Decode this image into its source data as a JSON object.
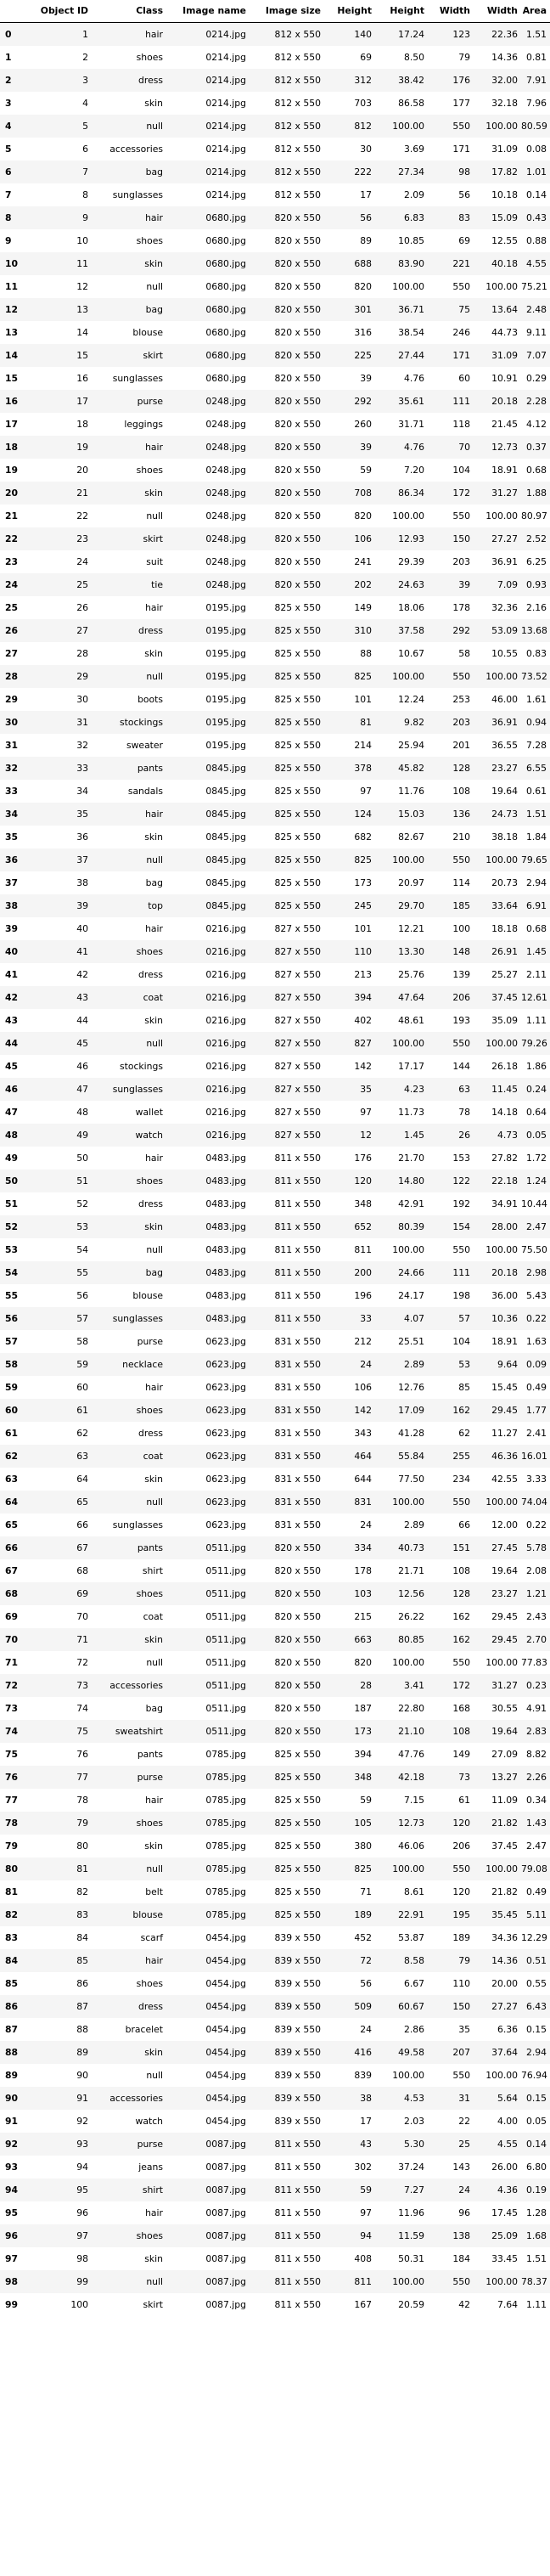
{
  "columns": [
    "",
    "Object ID",
    "Class",
    "Image name",
    "Image size",
    "Height",
    "Height",
    "Width",
    "Width",
    "Area"
  ],
  "rows": [
    [
      "0",
      "1",
      "hair",
      "0214.jpg",
      "812 x 550",
      "140",
      "17.24",
      "123",
      "22.36",
      "1.51"
    ],
    [
      "1",
      "2",
      "shoes",
      "0214.jpg",
      "812 x 550",
      "69",
      "8.50",
      "79",
      "14.36",
      "0.81"
    ],
    [
      "2",
      "3",
      "dress",
      "0214.jpg",
      "812 x 550",
      "312",
      "38.42",
      "176",
      "32.00",
      "7.91"
    ],
    [
      "3",
      "4",
      "skin",
      "0214.jpg",
      "812 x 550",
      "703",
      "86.58",
      "177",
      "32.18",
      "7.96"
    ],
    [
      "4",
      "5",
      "null",
      "0214.jpg",
      "812 x 550",
      "812",
      "100.00",
      "550",
      "100.00",
      "80.59"
    ],
    [
      "5",
      "6",
      "accessories",
      "0214.jpg",
      "812 x 550",
      "30",
      "3.69",
      "171",
      "31.09",
      "0.08"
    ],
    [
      "6",
      "7",
      "bag",
      "0214.jpg",
      "812 x 550",
      "222",
      "27.34",
      "98",
      "17.82",
      "1.01"
    ],
    [
      "7",
      "8",
      "sunglasses",
      "0214.jpg",
      "812 x 550",
      "17",
      "2.09",
      "56",
      "10.18",
      "0.14"
    ],
    [
      "8",
      "9",
      "hair",
      "0680.jpg",
      "820 x 550",
      "56",
      "6.83",
      "83",
      "15.09",
      "0.43"
    ],
    [
      "9",
      "10",
      "shoes",
      "0680.jpg",
      "820 x 550",
      "89",
      "10.85",
      "69",
      "12.55",
      "0.88"
    ],
    [
      "10",
      "11",
      "skin",
      "0680.jpg",
      "820 x 550",
      "688",
      "83.90",
      "221",
      "40.18",
      "4.55"
    ],
    [
      "11",
      "12",
      "null",
      "0680.jpg",
      "820 x 550",
      "820",
      "100.00",
      "550",
      "100.00",
      "75.21"
    ],
    [
      "12",
      "13",
      "bag",
      "0680.jpg",
      "820 x 550",
      "301",
      "36.71",
      "75",
      "13.64",
      "2.48"
    ],
    [
      "13",
      "14",
      "blouse",
      "0680.jpg",
      "820 x 550",
      "316",
      "38.54",
      "246",
      "44.73",
      "9.11"
    ],
    [
      "14",
      "15",
      "skirt",
      "0680.jpg",
      "820 x 550",
      "225",
      "27.44",
      "171",
      "31.09",
      "7.07"
    ],
    [
      "15",
      "16",
      "sunglasses",
      "0680.jpg",
      "820 x 550",
      "39",
      "4.76",
      "60",
      "10.91",
      "0.29"
    ],
    [
      "16",
      "17",
      "purse",
      "0248.jpg",
      "820 x 550",
      "292",
      "35.61",
      "111",
      "20.18",
      "2.28"
    ],
    [
      "17",
      "18",
      "leggings",
      "0248.jpg",
      "820 x 550",
      "260",
      "31.71",
      "118",
      "21.45",
      "4.12"
    ],
    [
      "18",
      "19",
      "hair",
      "0248.jpg",
      "820 x 550",
      "39",
      "4.76",
      "70",
      "12.73",
      "0.37"
    ],
    [
      "19",
      "20",
      "shoes",
      "0248.jpg",
      "820 x 550",
      "59",
      "7.20",
      "104",
      "18.91",
      "0.68"
    ],
    [
      "20",
      "21",
      "skin",
      "0248.jpg",
      "820 x 550",
      "708",
      "86.34",
      "172",
      "31.27",
      "1.88"
    ],
    [
      "21",
      "22",
      "null",
      "0248.jpg",
      "820 x 550",
      "820",
      "100.00",
      "550",
      "100.00",
      "80.97"
    ],
    [
      "22",
      "23",
      "skirt",
      "0248.jpg",
      "820 x 550",
      "106",
      "12.93",
      "150",
      "27.27",
      "2.52"
    ],
    [
      "23",
      "24",
      "suit",
      "0248.jpg",
      "820 x 550",
      "241",
      "29.39",
      "203",
      "36.91",
      "6.25"
    ],
    [
      "24",
      "25",
      "tie",
      "0248.jpg",
      "820 x 550",
      "202",
      "24.63",
      "39",
      "7.09",
      "0.93"
    ],
    [
      "25",
      "26",
      "hair",
      "0195.jpg",
      "825 x 550",
      "149",
      "18.06",
      "178",
      "32.36",
      "2.16"
    ],
    [
      "26",
      "27",
      "dress",
      "0195.jpg",
      "825 x 550",
      "310",
      "37.58",
      "292",
      "53.09",
      "13.68"
    ],
    [
      "27",
      "28",
      "skin",
      "0195.jpg",
      "825 x 550",
      "88",
      "10.67",
      "58",
      "10.55",
      "0.83"
    ],
    [
      "28",
      "29",
      "null",
      "0195.jpg",
      "825 x 550",
      "825",
      "100.00",
      "550",
      "100.00",
      "73.52"
    ],
    [
      "29",
      "30",
      "boots",
      "0195.jpg",
      "825 x 550",
      "101",
      "12.24",
      "253",
      "46.00",
      "1.61"
    ],
    [
      "30",
      "31",
      "stockings",
      "0195.jpg",
      "825 x 550",
      "81",
      "9.82",
      "203",
      "36.91",
      "0.94"
    ],
    [
      "31",
      "32",
      "sweater",
      "0195.jpg",
      "825 x 550",
      "214",
      "25.94",
      "201",
      "36.55",
      "7.28"
    ],
    [
      "32",
      "33",
      "pants",
      "0845.jpg",
      "825 x 550",
      "378",
      "45.82",
      "128",
      "23.27",
      "6.55"
    ],
    [
      "33",
      "34",
      "sandals",
      "0845.jpg",
      "825 x 550",
      "97",
      "11.76",
      "108",
      "19.64",
      "0.61"
    ],
    [
      "34",
      "35",
      "hair",
      "0845.jpg",
      "825 x 550",
      "124",
      "15.03",
      "136",
      "24.73",
      "1.51"
    ],
    [
      "35",
      "36",
      "skin",
      "0845.jpg",
      "825 x 550",
      "682",
      "82.67",
      "210",
      "38.18",
      "1.84"
    ],
    [
      "36",
      "37",
      "null",
      "0845.jpg",
      "825 x 550",
      "825",
      "100.00",
      "550",
      "100.00",
      "79.65"
    ],
    [
      "37",
      "38",
      "bag",
      "0845.jpg",
      "825 x 550",
      "173",
      "20.97",
      "114",
      "20.73",
      "2.94"
    ],
    [
      "38",
      "39",
      "top",
      "0845.jpg",
      "825 x 550",
      "245",
      "29.70",
      "185",
      "33.64",
      "6.91"
    ],
    [
      "39",
      "40",
      "hair",
      "0216.jpg",
      "827 x 550",
      "101",
      "12.21",
      "100",
      "18.18",
      "0.68"
    ],
    [
      "40",
      "41",
      "shoes",
      "0216.jpg",
      "827 x 550",
      "110",
      "13.30",
      "148",
      "26.91",
      "1.45"
    ],
    [
      "41",
      "42",
      "dress",
      "0216.jpg",
      "827 x 550",
      "213",
      "25.76",
      "139",
      "25.27",
      "2.11"
    ],
    [
      "42",
      "43",
      "coat",
      "0216.jpg",
      "827 x 550",
      "394",
      "47.64",
      "206",
      "37.45",
      "12.61"
    ],
    [
      "43",
      "44",
      "skin",
      "0216.jpg",
      "827 x 550",
      "402",
      "48.61",
      "193",
      "35.09",
      "1.11"
    ],
    [
      "44",
      "45",
      "null",
      "0216.jpg",
      "827 x 550",
      "827",
      "100.00",
      "550",
      "100.00",
      "79.26"
    ],
    [
      "45",
      "46",
      "stockings",
      "0216.jpg",
      "827 x 550",
      "142",
      "17.17",
      "144",
      "26.18",
      "1.86"
    ],
    [
      "46",
      "47",
      "sunglasses",
      "0216.jpg",
      "827 x 550",
      "35",
      "4.23",
      "63",
      "11.45",
      "0.24"
    ],
    [
      "47",
      "48",
      "wallet",
      "0216.jpg",
      "827 x 550",
      "97",
      "11.73",
      "78",
      "14.18",
      "0.64"
    ],
    [
      "48",
      "49",
      "watch",
      "0216.jpg",
      "827 x 550",
      "12",
      "1.45",
      "26",
      "4.73",
      "0.05"
    ],
    [
      "49",
      "50",
      "hair",
      "0483.jpg",
      "811 x 550",
      "176",
      "21.70",
      "153",
      "27.82",
      "1.72"
    ],
    [
      "50",
      "51",
      "shoes",
      "0483.jpg",
      "811 x 550",
      "120",
      "14.80",
      "122",
      "22.18",
      "1.24"
    ],
    [
      "51",
      "52",
      "dress",
      "0483.jpg",
      "811 x 550",
      "348",
      "42.91",
      "192",
      "34.91",
      "10.44"
    ],
    [
      "52",
      "53",
      "skin",
      "0483.jpg",
      "811 x 550",
      "652",
      "80.39",
      "154",
      "28.00",
      "2.47"
    ],
    [
      "53",
      "54",
      "null",
      "0483.jpg",
      "811 x 550",
      "811",
      "100.00",
      "550",
      "100.00",
      "75.50"
    ],
    [
      "54",
      "55",
      "bag",
      "0483.jpg",
      "811 x 550",
      "200",
      "24.66",
      "111",
      "20.18",
      "2.98"
    ],
    [
      "55",
      "56",
      "blouse",
      "0483.jpg",
      "811 x 550",
      "196",
      "24.17",
      "198",
      "36.00",
      "5.43"
    ],
    [
      "56",
      "57",
      "sunglasses",
      "0483.jpg",
      "811 x 550",
      "33",
      "4.07",
      "57",
      "10.36",
      "0.22"
    ],
    [
      "57",
      "58",
      "purse",
      "0623.jpg",
      "831 x 550",
      "212",
      "25.51",
      "104",
      "18.91",
      "1.63"
    ],
    [
      "58",
      "59",
      "necklace",
      "0623.jpg",
      "831 x 550",
      "24",
      "2.89",
      "53",
      "9.64",
      "0.09"
    ],
    [
      "59",
      "60",
      "hair",
      "0623.jpg",
      "831 x 550",
      "106",
      "12.76",
      "85",
      "15.45",
      "0.49"
    ],
    [
      "60",
      "61",
      "shoes",
      "0623.jpg",
      "831 x 550",
      "142",
      "17.09",
      "162",
      "29.45",
      "1.77"
    ],
    [
      "61",
      "62",
      "dress",
      "0623.jpg",
      "831 x 550",
      "343",
      "41.28",
      "62",
      "11.27",
      "2.41"
    ],
    [
      "62",
      "63",
      "coat",
      "0623.jpg",
      "831 x 550",
      "464",
      "55.84",
      "255",
      "46.36",
      "16.01"
    ],
    [
      "63",
      "64",
      "skin",
      "0623.jpg",
      "831 x 550",
      "644",
      "77.50",
      "234",
      "42.55",
      "3.33"
    ],
    [
      "64",
      "65",
      "null",
      "0623.jpg",
      "831 x 550",
      "831",
      "100.00",
      "550",
      "100.00",
      "74.04"
    ],
    [
      "65",
      "66",
      "sunglasses",
      "0623.jpg",
      "831 x 550",
      "24",
      "2.89",
      "66",
      "12.00",
      "0.22"
    ],
    [
      "66",
      "67",
      "pants",
      "0511.jpg",
      "820 x 550",
      "334",
      "40.73",
      "151",
      "27.45",
      "5.78"
    ],
    [
      "67",
      "68",
      "shirt",
      "0511.jpg",
      "820 x 550",
      "178",
      "21.71",
      "108",
      "19.64",
      "2.08"
    ],
    [
      "68",
      "69",
      "shoes",
      "0511.jpg",
      "820 x 550",
      "103",
      "12.56",
      "128",
      "23.27",
      "1.21"
    ],
    [
      "69",
      "70",
      "coat",
      "0511.jpg",
      "820 x 550",
      "215",
      "26.22",
      "162",
      "29.45",
      "2.43"
    ],
    [
      "70",
      "71",
      "skin",
      "0511.jpg",
      "820 x 550",
      "663",
      "80.85",
      "162",
      "29.45",
      "2.70"
    ],
    [
      "71",
      "72",
      "null",
      "0511.jpg",
      "820 x 550",
      "820",
      "100.00",
      "550",
      "100.00",
      "77.83"
    ],
    [
      "72",
      "73",
      "accessories",
      "0511.jpg",
      "820 x 550",
      "28",
      "3.41",
      "172",
      "31.27",
      "0.23"
    ],
    [
      "73",
      "74",
      "bag",
      "0511.jpg",
      "820 x 550",
      "187",
      "22.80",
      "168",
      "30.55",
      "4.91"
    ],
    [
      "74",
      "75",
      "sweatshirt",
      "0511.jpg",
      "820 x 550",
      "173",
      "21.10",
      "108",
      "19.64",
      "2.83"
    ],
    [
      "75",
      "76",
      "pants",
      "0785.jpg",
      "825 x 550",
      "394",
      "47.76",
      "149",
      "27.09",
      "8.82"
    ],
    [
      "76",
      "77",
      "purse",
      "0785.jpg",
      "825 x 550",
      "348",
      "42.18",
      "73",
      "13.27",
      "2.26"
    ],
    [
      "77",
      "78",
      "hair",
      "0785.jpg",
      "825 x 550",
      "59",
      "7.15",
      "61",
      "11.09",
      "0.34"
    ],
    [
      "78",
      "79",
      "shoes",
      "0785.jpg",
      "825 x 550",
      "105",
      "12.73",
      "120",
      "21.82",
      "1.43"
    ],
    [
      "79",
      "80",
      "skin",
      "0785.jpg",
      "825 x 550",
      "380",
      "46.06",
      "206",
      "37.45",
      "2.47"
    ],
    [
      "80",
      "81",
      "null",
      "0785.jpg",
      "825 x 550",
      "825",
      "100.00",
      "550",
      "100.00",
      "79.08"
    ],
    [
      "81",
      "82",
      "belt",
      "0785.jpg",
      "825 x 550",
      "71",
      "8.61",
      "120",
      "21.82",
      "0.49"
    ],
    [
      "82",
      "83",
      "blouse",
      "0785.jpg",
      "825 x 550",
      "189",
      "22.91",
      "195",
      "35.45",
      "5.11"
    ],
    [
      "83",
      "84",
      "scarf",
      "0454.jpg",
      "839 x 550",
      "452",
      "53.87",
      "189",
      "34.36",
      "12.29"
    ],
    [
      "84",
      "85",
      "hair",
      "0454.jpg",
      "839 x 550",
      "72",
      "8.58",
      "79",
      "14.36",
      "0.51"
    ],
    [
      "85",
      "86",
      "shoes",
      "0454.jpg",
      "839 x 550",
      "56",
      "6.67",
      "110",
      "20.00",
      "0.55"
    ],
    [
      "86",
      "87",
      "dress",
      "0454.jpg",
      "839 x 550",
      "509",
      "60.67",
      "150",
      "27.27",
      "6.43"
    ],
    [
      "87",
      "88",
      "bracelet",
      "0454.jpg",
      "839 x 550",
      "24",
      "2.86",
      "35",
      "6.36",
      "0.15"
    ],
    [
      "88",
      "89",
      "skin",
      "0454.jpg",
      "839 x 550",
      "416",
      "49.58",
      "207",
      "37.64",
      "2.94"
    ],
    [
      "89",
      "90",
      "null",
      "0454.jpg",
      "839 x 550",
      "839",
      "100.00",
      "550",
      "100.00",
      "76.94"
    ],
    [
      "90",
      "91",
      "accessories",
      "0454.jpg",
      "839 x 550",
      "38",
      "4.53",
      "31",
      "5.64",
      "0.15"
    ],
    [
      "91",
      "92",
      "watch",
      "0454.jpg",
      "839 x 550",
      "17",
      "2.03",
      "22",
      "4.00",
      "0.05"
    ],
    [
      "92",
      "93",
      "purse",
      "0087.jpg",
      "811 x 550",
      "43",
      "5.30",
      "25",
      "4.55",
      "0.14"
    ],
    [
      "93",
      "94",
      "jeans",
      "0087.jpg",
      "811 x 550",
      "302",
      "37.24",
      "143",
      "26.00",
      "6.80"
    ],
    [
      "94",
      "95",
      "shirt",
      "0087.jpg",
      "811 x 550",
      "59",
      "7.27",
      "24",
      "4.36",
      "0.19"
    ],
    [
      "95",
      "96",
      "hair",
      "0087.jpg",
      "811 x 550",
      "97",
      "11.96",
      "96",
      "17.45",
      "1.28"
    ],
    [
      "96",
      "97",
      "shoes",
      "0087.jpg",
      "811 x 550",
      "94",
      "11.59",
      "138",
      "25.09",
      "1.68"
    ],
    [
      "97",
      "98",
      "skin",
      "0087.jpg",
      "811 x 550",
      "408",
      "50.31",
      "184",
      "33.45",
      "1.51"
    ],
    [
      "98",
      "99",
      "null",
      "0087.jpg",
      "811 x 550",
      "811",
      "100.00",
      "550",
      "100.00",
      "78.37"
    ],
    [
      "99",
      "100",
      "skirt",
      "0087.jpg",
      "811 x 550",
      "167",
      "20.59",
      "42",
      "7.64",
      "1.11"
    ]
  ]
}
